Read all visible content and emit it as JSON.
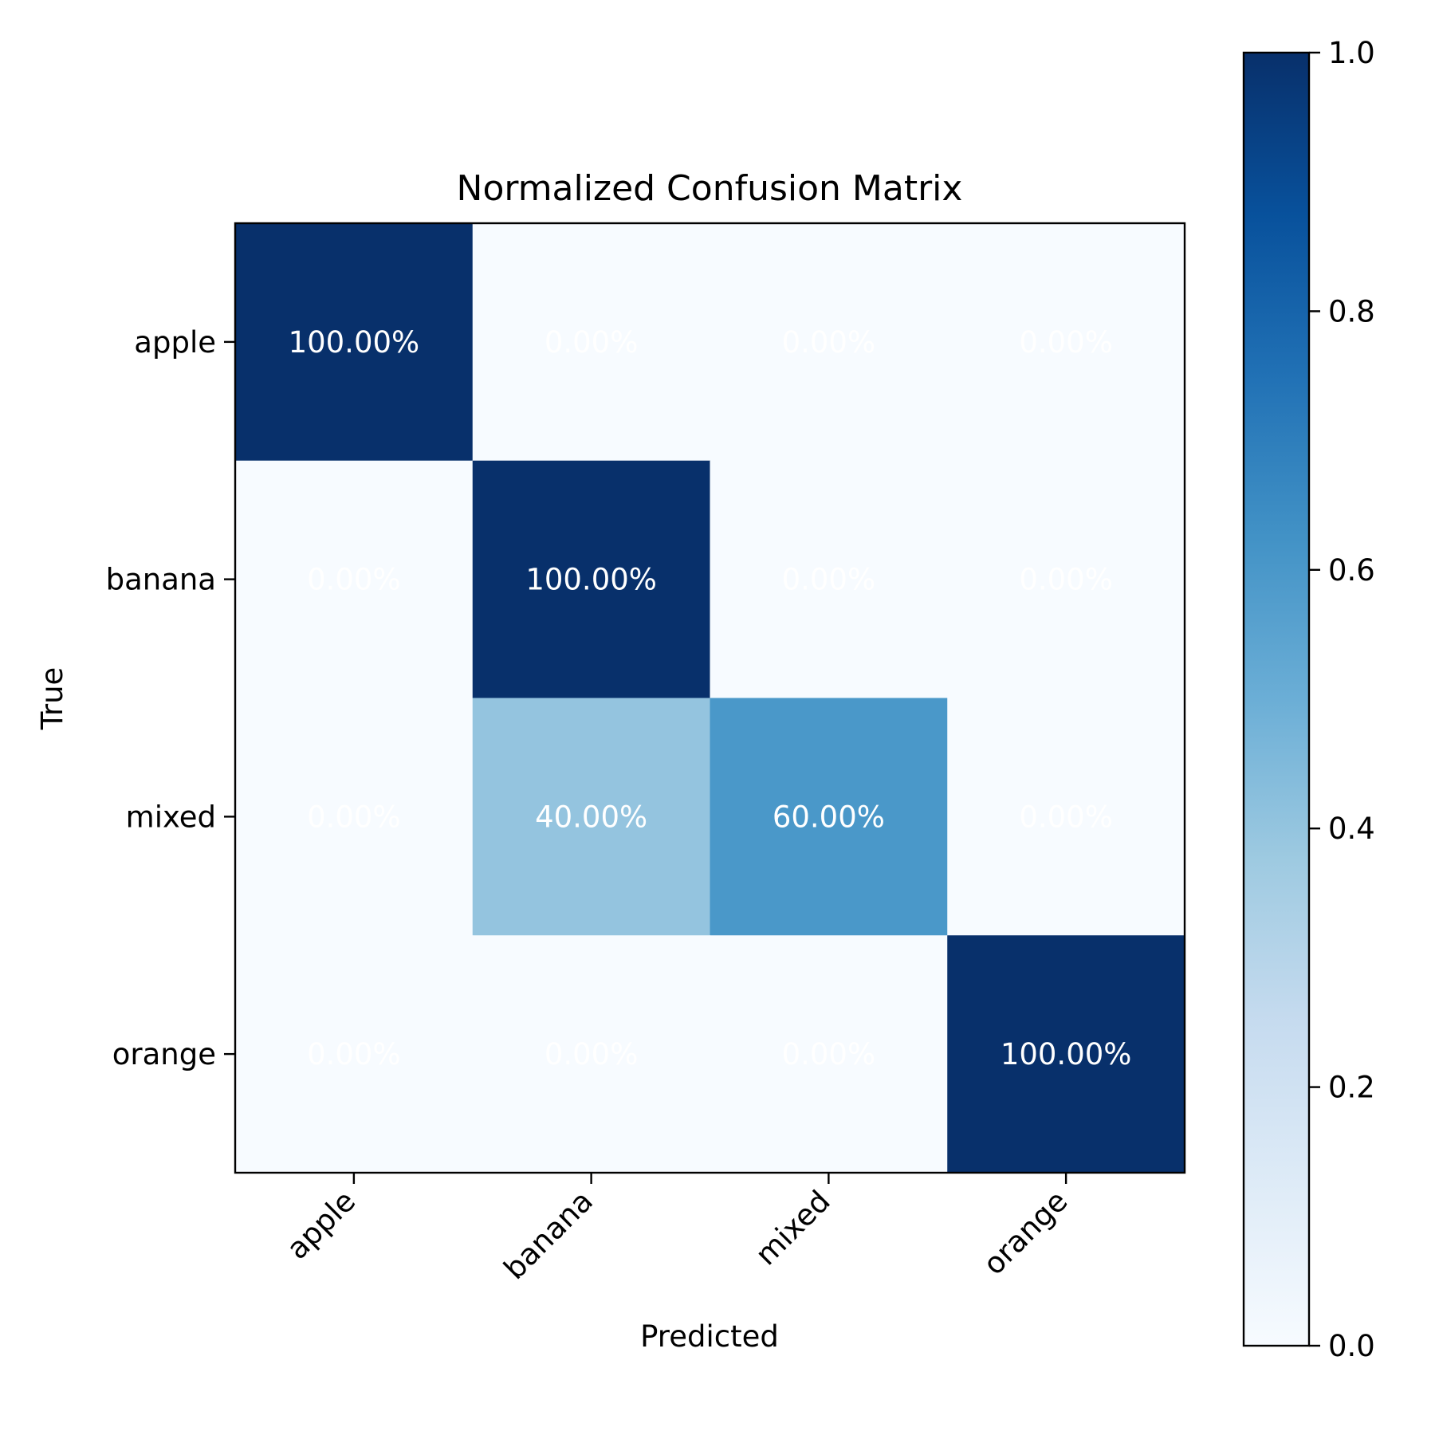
{
  "chart_data": {
    "type": "heatmap",
    "title": "Normalized Confusion Matrix",
    "xlabel": "Predicted",
    "ylabel": "True",
    "x_categories": [
      "apple",
      "banana",
      "mixed",
      "orange"
    ],
    "y_categories": [
      "apple",
      "banana",
      "mixed",
      "orange"
    ],
    "values": [
      [
        1.0,
        0.0,
        0.0,
        0.0
      ],
      [
        0.0,
        1.0,
        0.0,
        0.0
      ],
      [
        0.0,
        0.4,
        0.6,
        0.0
      ],
      [
        0.0,
        0.0,
        0.0,
        1.0
      ]
    ],
    "cell_labels": [
      [
        "100.00%",
        "0.00%",
        "0.00%",
        "0.00%"
      ],
      [
        "0.00%",
        "100.00%",
        "0.00%",
        "0.00%"
      ],
      [
        "0.00%",
        "40.00%",
        "60.00%",
        "0.00%"
      ],
      [
        "0.00%",
        "0.00%",
        "0.00%",
        "100.00%"
      ]
    ],
    "colormap": "Blues",
    "colormap_stops": [
      "#f7fbff",
      "#deebf7",
      "#c6dbef",
      "#9ecae1",
      "#6baed6",
      "#4292c6",
      "#2171b5",
      "#08519c",
      "#08306b"
    ],
    "cell_text_color": "#ffffff",
    "colorbar": {
      "range": [
        0.0,
        1.0
      ],
      "ticks": [
        0.0,
        0.2,
        0.4,
        0.6,
        0.8,
        1.0
      ],
      "tick_labels": [
        "0.0",
        "0.2",
        "0.4",
        "0.6",
        "0.8",
        "1.0"
      ],
      "placement": "right"
    },
    "grid": false
  }
}
